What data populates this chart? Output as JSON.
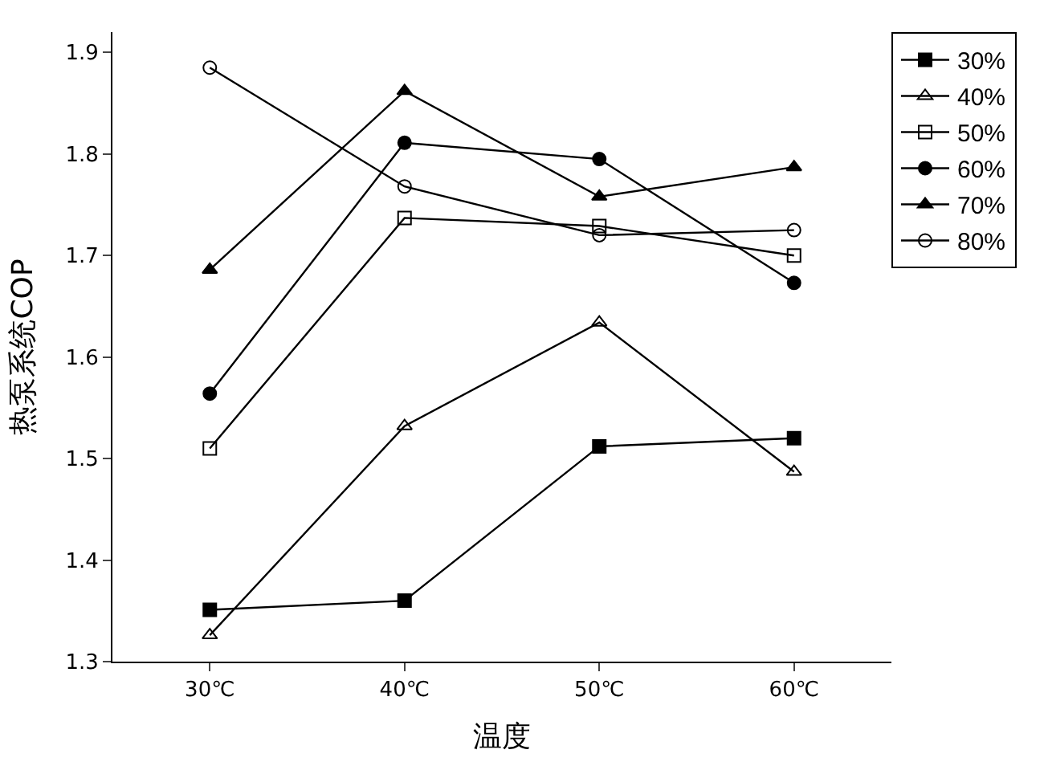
{
  "chart_data": {
    "type": "line",
    "xlabel": "温度",
    "ylabel": "热泵系统COP",
    "categories": [
      "30℃",
      "40℃",
      "50℃",
      "60℃"
    ],
    "ylim": [
      1.3,
      1.92
    ],
    "yticks": [
      1.3,
      1.4,
      1.5,
      1.6,
      1.7,
      1.8,
      1.9
    ],
    "legend": "top right",
    "series": [
      {
        "name": "30%",
        "color": "#000000",
        "marker": "square",
        "values": [
          1.351,
          1.36,
          1.512,
          1.52
        ]
      },
      {
        "name": "40%",
        "color": "#000000",
        "marker": "triangle-open",
        "values": [
          1.326,
          1.532,
          1.634,
          1.487
        ]
      },
      {
        "name": "50%",
        "color": "#000000",
        "marker": "square-open",
        "values": [
          1.51,
          1.737,
          1.729,
          1.7
        ]
      },
      {
        "name": "60%",
        "color": "#000000",
        "marker": "circle",
        "values": [
          1.564,
          1.811,
          1.795,
          1.673
        ]
      },
      {
        "name": "70%",
        "color": "#000000",
        "marker": "triangle",
        "values": [
          1.686,
          1.862,
          1.758,
          1.787
        ]
      },
      {
        "name": "80%",
        "color": "#000000",
        "marker": "circle-open",
        "values": [
          1.885,
          1.768,
          1.72,
          1.725
        ]
      }
    ]
  }
}
